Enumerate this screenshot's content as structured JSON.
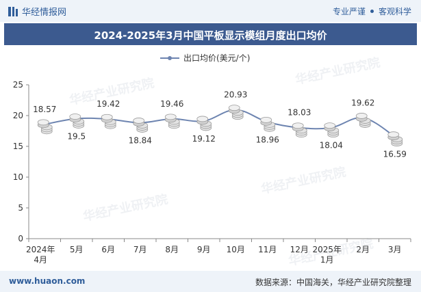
{
  "header": {
    "brand": "华经情报网",
    "right_left": "专业严谨",
    "right_right": "客观科学"
  },
  "watermark": "华经产业研究院",
  "colors": {
    "title_bg": "#3c5a8f",
    "line": "#6d84b0",
    "coin_light": "#e3e3e3",
    "coin_dark": "#9a9a9a",
    "bar_bg": "#eef3f9",
    "brand": "#2f5d9a"
  },
  "chart_data": {
    "type": "line",
    "title": "2024-2025年3月中国平板显示模组月度出口均价",
    "categories": [
      "2024年4月",
      "5月",
      "6月",
      "7月",
      "8月",
      "9月",
      "10月",
      "11月",
      "12月",
      "2025年1月",
      "2月",
      "3月"
    ],
    "series": [
      {
        "name": "出口均价(美元/个)",
        "values": [
          18.57,
          19.5,
          19.42,
          18.84,
          19.46,
          19.12,
          20.93,
          18.96,
          18.03,
          18.04,
          19.62,
          16.59
        ]
      }
    ],
    "label_positions": [
      "above",
      "below",
      "above",
      "below",
      "above",
      "below",
      "above",
      "below",
      "above",
      "below",
      "above",
      "below"
    ],
    "ylim": [
      0,
      25
    ],
    "yticks": [
      0,
      5,
      10,
      15,
      20,
      25
    ],
    "xlabel": "",
    "ylabel": "",
    "grid": false,
    "legend_position": "top"
  },
  "footer": {
    "website": "www.huaon.com",
    "source": "数据来源：中国海关，华经产业研究院整理"
  }
}
